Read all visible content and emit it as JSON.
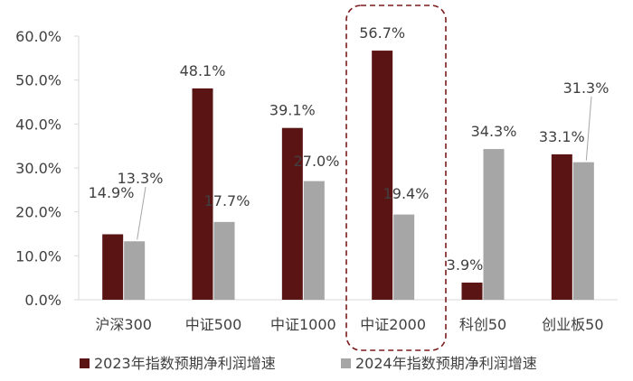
{
  "chart_data": {
    "type": "bar",
    "categories": [
      "沪深300",
      "中证500",
      "中证1000",
      "中证2000",
      "科创50",
      "创业板50"
    ],
    "series": [
      {
        "name": "2023年指数预期净利润增速",
        "color": "#5b1414",
        "values": [
          14.9,
          48.1,
          39.1,
          56.7,
          3.9,
          33.1
        ]
      },
      {
        "name": "2024年指数预期净利润增速",
        "color": "#a6a6a6",
        "values": [
          13.3,
          17.7,
          27.0,
          19.4,
          34.3,
          31.3
        ]
      }
    ],
    "data_labels": [
      [
        "14.9%",
        "48.1%",
        "39.1%",
        "56.7%",
        "3.9%",
        "33.1%"
      ],
      [
        "13.3%",
        "17.7%",
        "27.0%",
        "19.4%",
        "34.3%",
        "31.3%"
      ]
    ],
    "ylim": [
      0,
      60
    ],
    "yticks": [
      "0.0%",
      "10.0%",
      "20.0%",
      "30.0%",
      "40.0%",
      "50.0%",
      "60.0%"
    ],
    "highlight_category": "中证2000",
    "legend_position": "bottom",
    "grid": false
  }
}
